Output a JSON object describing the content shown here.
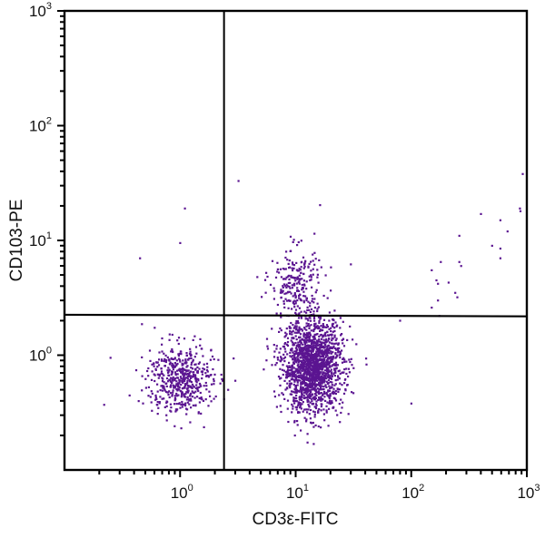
{
  "chart_data": {
    "type": "scatter",
    "title": "",
    "xlabel": "CD3ε-FITC",
    "ylabel": "CD103-PE",
    "xscale": "log",
    "yscale": "log",
    "xlim": [
      0.1,
      1000
    ],
    "ylim": [
      0.1,
      1000
    ],
    "x_ticks": [
      {
        "base": "10",
        "exp": "0",
        "value": 1
      },
      {
        "base": "10",
        "exp": "1",
        "value": 10
      },
      {
        "base": "10",
        "exp": "2",
        "value": 100
      },
      {
        "base": "10",
        "exp": "3",
        "value": 1000
      }
    ],
    "y_ticks": [
      {
        "base": "10",
        "exp": "0",
        "value": 1
      },
      {
        "base": "10",
        "exp": "1",
        "value": 10
      },
      {
        "base": "10",
        "exp": "2",
        "value": 100
      },
      {
        "base": "10",
        "exp": "3",
        "value": 1000
      }
    ],
    "grid": false,
    "legend": null,
    "point_color": "#5b1591",
    "quadrant_gates": {
      "x": 2.4,
      "y_left": 2.25,
      "y_right": 2.18
    },
    "clusters": [
      {
        "name": "CD3+ CD103- (lower right, main population)",
        "center_x": 14,
        "center_y": 0.8,
        "sd_log_x": 0.13,
        "sd_log_y": 0.2,
        "n": 1700
      },
      {
        "name": "CD3- CD103- (lower left)",
        "center_x": 1.0,
        "center_y": 0.62,
        "sd_log_x": 0.14,
        "sd_log_y": 0.15,
        "n": 520
      },
      {
        "name": "CD3+ CD103+ (upper right)",
        "center_x": 10,
        "center_y": 4.2,
        "sd_log_x": 0.11,
        "sd_log_y": 0.16,
        "n": 230
      }
    ],
    "outliers": [
      [
        3.2,
        33
      ],
      [
        1.1,
        19
      ],
      [
        1.0,
        9.5
      ],
      [
        0.45,
        7
      ],
      [
        920,
        38
      ],
      [
        870,
        19
      ],
      [
        880,
        18
      ],
      [
        400,
        17
      ],
      [
        590,
        15
      ],
      [
        260,
        11
      ],
      [
        680,
        12
      ],
      [
        500,
        9
      ],
      [
        590,
        8.5
      ],
      [
        590,
        7
      ],
      [
        180,
        6.5
      ],
      [
        260,
        6.5
      ],
      [
        270,
        6
      ],
      [
        150,
        5.5
      ],
      [
        165,
        4.5
      ],
      [
        170,
        4.2
      ],
      [
        210,
        4.3
      ],
      [
        240,
        3.5
      ],
      [
        250,
        3.2
      ],
      [
        170,
        3.0
      ],
      [
        150,
        2.6
      ],
      [
        175,
        2.2
      ],
      [
        30,
        6.2
      ],
      [
        80,
        2.0
      ],
      [
        100,
        0.38
      ],
      [
        0.22,
        0.37
      ],
      [
        0.25,
        0.95
      ],
      [
        2.6,
        0.5
      ],
      [
        3.0,
        0.6
      ]
    ],
    "quadrant_counts_visible": "not shown"
  }
}
